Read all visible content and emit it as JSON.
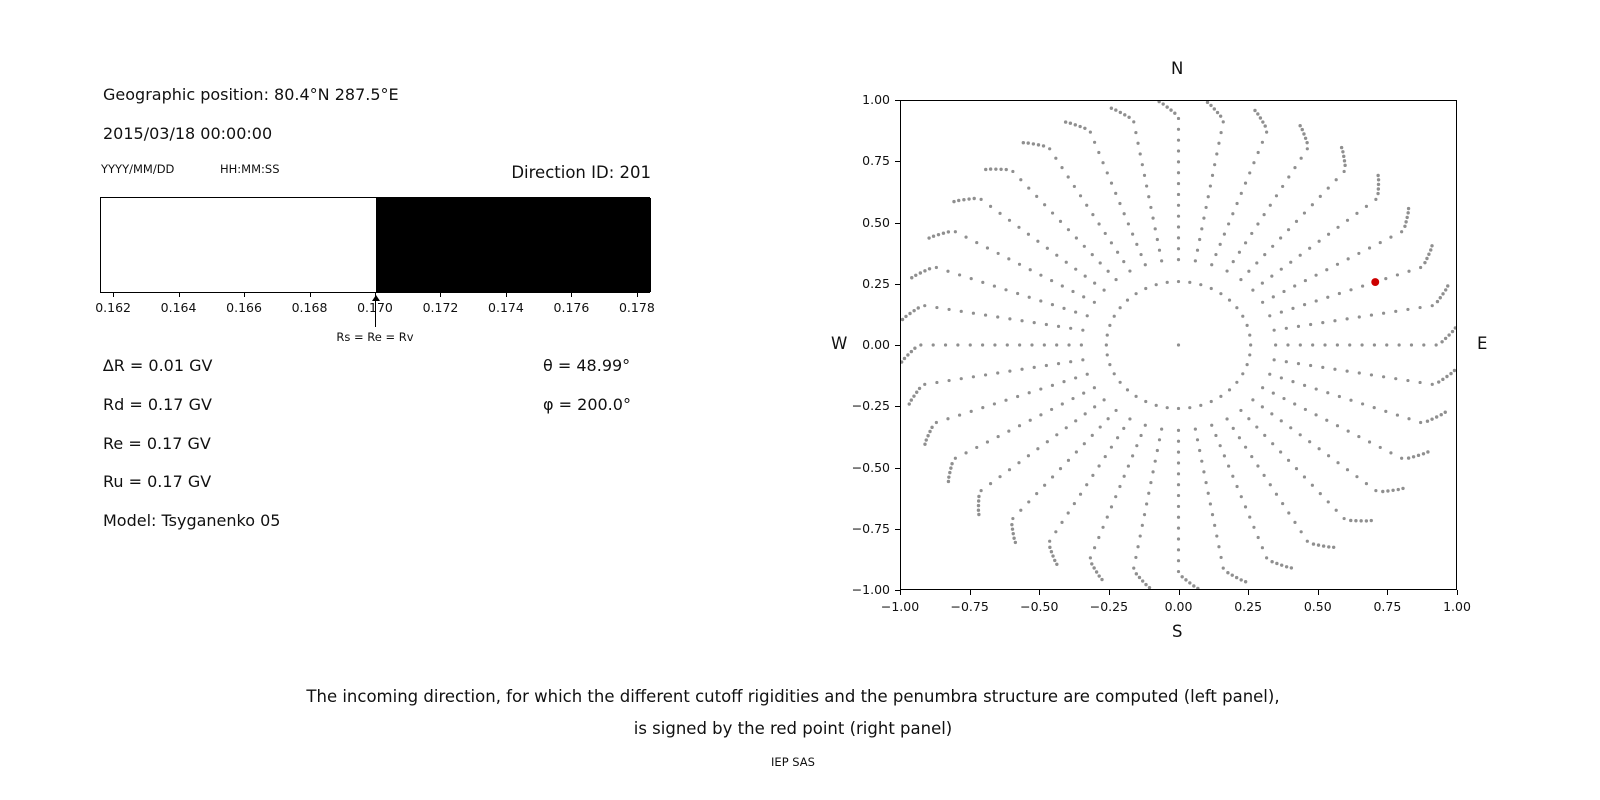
{
  "figure": {
    "left": {
      "geo_position": "Geographic position: 80.4°N 287.5°E",
      "datetime": "2015/03/18 00:00:00",
      "date_format_label": "YYYY/MM/DD",
      "time_format_label": "HH:MM:SS",
      "direction_id": "Direction ID: 201",
      "arrow_label": "Rs = Re = Rv",
      "params_left": [
        "∆R = 0.01 GV",
        "Rd = 0.17 GV",
        "Re = 0.17 GV",
        "Ru = 0.17 GV",
        "Model: Tsyganenko 05"
      ],
      "params_right": [
        "θ = 48.99°",
        "φ = 200.0°"
      ]
    },
    "caption_line1": "The incoming direction, for which the different cutoff rigidities and the penumbra structure are computed (left panel),",
    "caption_line2": "is signed by the red point (right panel)",
    "credit": "IEP SAS"
  },
  "chart_data": [
    {
      "type": "area",
      "name": "penumbra-structure",
      "title": "",
      "xlabel": "",
      "ylabel": "",
      "xlim": [
        0.1616,
        0.1784
      ],
      "x_ticks": [
        0.162,
        0.164,
        0.166,
        0.168,
        0.17,
        0.172,
        0.174,
        0.176,
        0.178
      ],
      "x_tick_labels": [
        "0.162",
        "0.164",
        "0.166",
        "0.168",
        "0.170",
        "0.172",
        "0.174",
        "0.176",
        "0.178"
      ],
      "allowed_region": {
        "from": 0.1616,
        "to": 0.17,
        "color": "#ffffff"
      },
      "forbidden_region": {
        "from": 0.17,
        "to": 0.1784,
        "color": "#000000"
      },
      "annotation": {
        "x": 0.17,
        "label": "Rs = Re = Rv"
      }
    },
    {
      "type": "scatter",
      "name": "incoming-directions",
      "title": "",
      "xlim": [
        -1,
        1
      ],
      "ylim": [
        -1,
        1
      ],
      "grid": false,
      "x_ticks": [
        -1,
        -0.75,
        -0.5,
        -0.25,
        0,
        0.25,
        0.5,
        0.75,
        1
      ],
      "y_ticks": [
        1,
        0.75,
        0.5,
        0.25,
        0,
        -0.25,
        -0.5,
        -0.75,
        -1
      ],
      "x_tick_labels": [
        "−1.00",
        "−0.75",
        "−0.50",
        "−0.25",
        "0.00",
        "0.25",
        "0.50",
        "0.75",
        "1.00"
      ],
      "y_tick_labels": [
        "1.00",
        "0.75",
        "0.50",
        "0.25",
        "0.00",
        "−0.25",
        "−0.50",
        "−0.75",
        "−1.00"
      ],
      "cardinal_labels": {
        "top": "N",
        "bottom": "S",
        "left": "W",
        "right": "E"
      },
      "dot_color": "#8f8f8f",
      "center_dot": {
        "x": 0,
        "y": 0
      },
      "inner_ring": {
        "radius": 0.26,
        "n_dots": 40
      },
      "spokes": {
        "count": 36,
        "start_deg": 0,
        "step_deg": 10,
        "r_start": 0.35,
        "r_main_end": 0.93,
        "main_step": 0.0445,
        "tip_radii": [
          0.95,
          0.963,
          0.976,
          0.989,
          1.0
        ],
        "tip_bend_deg": 4
      },
      "red_point": {
        "x": 0.709,
        "y": 0.258,
        "color": "#cc0000"
      }
    }
  ]
}
